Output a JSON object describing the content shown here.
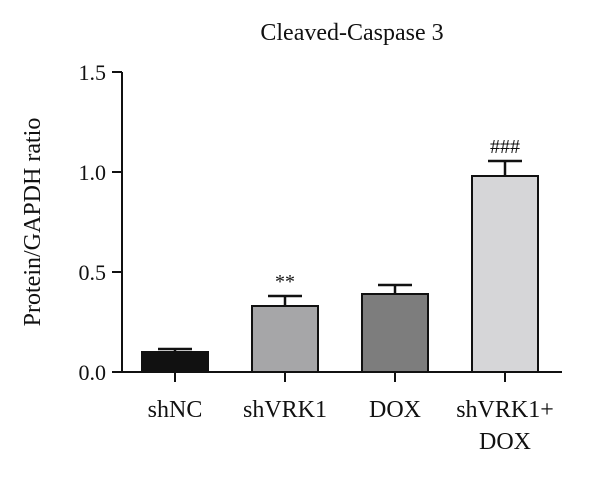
{
  "chart_data": {
    "type": "bar",
    "title": "Cleaved-Caspase 3",
    "ylabel": "Protein/GAPDH ratio",
    "xlabel": "",
    "ylim": [
      0,
      1.5
    ],
    "yticks": [
      "0.0",
      "0.5",
      "1.0",
      "1.5"
    ],
    "categories": [
      [
        "shNC"
      ],
      [
        "shVRK1"
      ],
      [
        "DOX"
      ],
      [
        "shVRK1+",
        "DOX"
      ]
    ],
    "values": [
      0.1,
      0.33,
      0.39,
      0.98
    ],
    "errors": [
      0.015,
      0.05,
      0.045,
      0.075
    ],
    "annotations": [
      "",
      "**",
      "",
      "###"
    ],
    "colors": [
      "#111111",
      "#a6a6a8",
      "#7d7d7d",
      "#d6d6d8"
    ],
    "grid": false,
    "legend": "none"
  }
}
